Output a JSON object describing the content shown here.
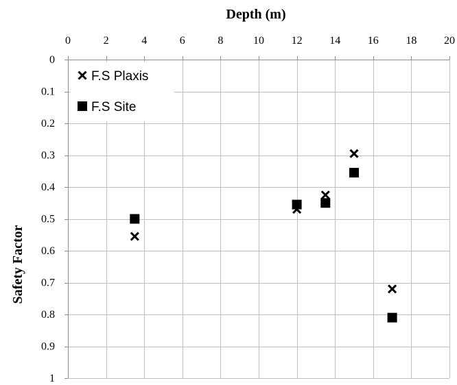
{
  "chart_data": {
    "type": "scatter",
    "title": "",
    "xlabel": "Depth (m)",
    "ylabel": "Safety Factor",
    "xlim": [
      0,
      20
    ],
    "ylim": [
      0,
      1
    ],
    "y_inverted": true,
    "x_axis_position": "top",
    "grid": true,
    "legend_position": "top-left",
    "x_ticks": [
      "0",
      "2",
      "4",
      "6",
      "8",
      "10",
      "12",
      "14",
      "16",
      "18",
      "20"
    ],
    "y_ticks": [
      "0",
      "0.1",
      "0.2",
      "0.3",
      "0.4",
      "0.5",
      "0.6",
      "0.7",
      "0.8",
      "0.9",
      "1"
    ],
    "series": [
      {
        "name": "F.S Plaxis",
        "marker": "x-icon",
        "color": "#000000",
        "x": [
          3.5,
          12,
          13.5,
          15,
          17
        ],
        "y": [
          0.555,
          0.47,
          0.425,
          0.295,
          0.72
        ]
      },
      {
        "name": "F.S Site",
        "marker": "square-icon",
        "color": "#000000",
        "x": [
          3.5,
          12,
          13.5,
          15,
          17
        ],
        "y": [
          0.5,
          0.455,
          0.45,
          0.355,
          0.81
        ]
      }
    ]
  }
}
